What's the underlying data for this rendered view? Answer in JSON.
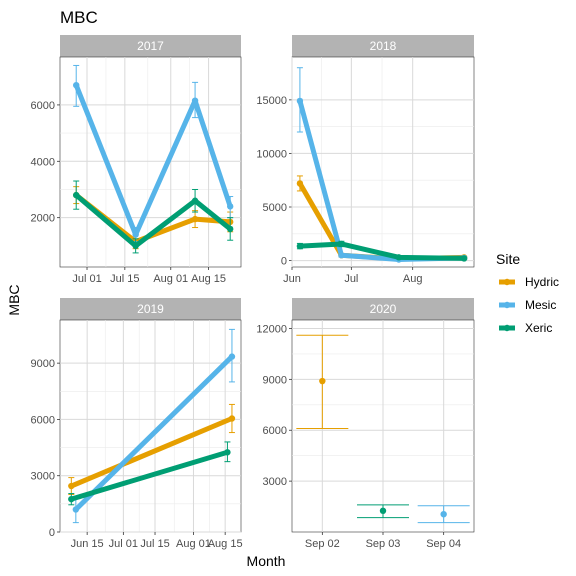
{
  "chart_data": {
    "type": "line",
    "title": "MBC",
    "xlabel": "Month",
    "ylabel": "MBC",
    "legend": {
      "title": "Site",
      "placement": "right",
      "entries": [
        {
          "name": "Hydric",
          "color": "#E69F00"
        },
        {
          "name": "Mesic",
          "color": "#56B4E9"
        },
        {
          "name": "Xeric",
          "color": "#009E73"
        }
      ]
    },
    "grid": true,
    "panels": [
      {
        "strip": "2017",
        "xlim": [
          "2017-06-21",
          "2017-08-27"
        ],
        "ylim": [
          250,
          7700
        ],
        "x_ticks": [
          {
            "date": "2017-07-01",
            "label": "Jul 01"
          },
          {
            "date": "2017-07-15",
            "label": "Jul 15"
          },
          {
            "date": "2017-08-01",
            "label": "Aug 01"
          },
          {
            "date": "2017-08-15",
            "label": "Aug 15"
          }
        ],
        "y_ticks": [
          2000,
          4000,
          6000
        ],
        "series": [
          {
            "name": "Hydric",
            "points": [
              {
                "x": "2017-06-27",
                "y": 2800,
                "lo": 2500,
                "hi": 3100
              },
              {
                "x": "2017-07-19",
                "y": 1150,
                "lo": 900,
                "hi": 1400
              },
              {
                "x": "2017-08-10",
                "y": 1950,
                "lo": 1650,
                "hi": 2250
              },
              {
                "x": "2017-08-23",
                "y": 1850,
                "lo": 1500,
                "hi": 2200
              }
            ]
          },
          {
            "name": "Mesic",
            "points": [
              {
                "x": "2017-06-27",
                "y": 6700,
                "lo": 5950,
                "hi": 7400
              },
              {
                "x": "2017-07-19",
                "y": 1400,
                "lo": 1150,
                "hi": 1650
              },
              {
                "x": "2017-08-10",
                "y": 6150,
                "lo": 5550,
                "hi": 6800
              },
              {
                "x": "2017-08-23",
                "y": 2400,
                "lo": 2000,
                "hi": 2750
              }
            ]
          },
          {
            "name": "Xeric",
            "points": [
              {
                "x": "2017-06-27",
                "y": 2800,
                "lo": 2300,
                "hi": 3300
              },
              {
                "x": "2017-07-19",
                "y": 1000,
                "lo": 750,
                "hi": 1250
              },
              {
                "x": "2017-08-10",
                "y": 2600,
                "lo": 2200,
                "hi": 3000
              },
              {
                "x": "2017-08-23",
                "y": 1600,
                "lo": 1200,
                "hi": 2000
              }
            ]
          }
        ]
      },
      {
        "strip": "2018",
        "xlim": [
          "2018-06-01",
          "2018-09-01"
        ],
        "ylim": [
          -600,
          19000
        ],
        "x_ticks": [
          {
            "date": "2018-06-01",
            "label": "Jun"
          },
          {
            "date": "2018-07-01",
            "label": "Jul"
          },
          {
            "date": "2018-08-01",
            "label": "Aug"
          }
        ],
        "y_ticks": [
          0,
          5000,
          10000,
          15000
        ],
        "series": [
          {
            "name": "Hydric",
            "points": [
              {
                "x": "2018-06-05",
                "y": 7200,
                "lo": 6500,
                "hi": 7900
              },
              {
                "x": "2018-06-26",
                "y": 500,
                "lo": 350,
                "hi": 650
              },
              {
                "x": "2018-07-25",
                "y": 150,
                "lo": 100,
                "hi": 200
              },
              {
                "x": "2018-08-27",
                "y": 300,
                "lo": 200,
                "hi": 400
              }
            ]
          },
          {
            "name": "Mesic",
            "points": [
              {
                "x": "2018-06-05",
                "y": 14900,
                "lo": 12000,
                "hi": 18000
              },
              {
                "x": "2018-06-26",
                "y": 500,
                "lo": 350,
                "hi": 650
              },
              {
                "x": "2018-07-25",
                "y": 100,
                "lo": 50,
                "hi": 150
              },
              {
                "x": "2018-08-27",
                "y": 250,
                "lo": 150,
                "hi": 350
              }
            ]
          },
          {
            "name": "Xeric",
            "points": [
              {
                "x": "2018-06-05",
                "y": 1350,
                "lo": 1100,
                "hi": 1600
              },
              {
                "x": "2018-06-26",
                "y": 1550,
                "lo": 1300,
                "hi": 1800
              },
              {
                "x": "2018-07-25",
                "y": 300,
                "lo": 200,
                "hi": 400
              },
              {
                "x": "2018-08-27",
                "y": 200,
                "lo": 100,
                "hi": 300
              }
            ]
          }
        ]
      },
      {
        "strip": "2019",
        "xlim": [
          "2019-06-03",
          "2019-08-22"
        ],
        "ylim": [
          0,
          11300
        ],
        "x_ticks": [
          {
            "date": "2019-06-15",
            "label": "Jun 15"
          },
          {
            "date": "2019-07-01",
            "label": "Jul 01"
          },
          {
            "date": "2019-07-15",
            "label": "Jul 15"
          },
          {
            "date": "2019-08-01",
            "label": "Aug 01"
          },
          {
            "date": "2019-08-15",
            "label": "Aug 15"
          }
        ],
        "y_ticks": [
          0,
          3000,
          6000,
          9000
        ],
        "series": [
          {
            "name": "Hydric",
            "points": [
              {
                "x": "2019-06-08",
                "y": 2450,
                "lo": 2000,
                "hi": 2900
              },
              {
                "x": "2019-08-18",
                "y": 6050,
                "lo": 5300,
                "hi": 6800
              }
            ]
          },
          {
            "name": "Mesic",
            "points": [
              {
                "x": "2019-06-10",
                "y": 1200,
                "lo": 500,
                "hi": 1900
              },
              {
                "x": "2019-08-18",
                "y": 9350,
                "lo": 8000,
                "hi": 10800
              }
            ]
          },
          {
            "name": "Xeric",
            "points": [
              {
                "x": "2019-06-08",
                "y": 1750,
                "lo": 1450,
                "hi": 2050
              },
              {
                "x": "2019-08-16",
                "y": 4250,
                "lo": 3750,
                "hi": 4800
              }
            ]
          }
        ]
      },
      {
        "strip": "2020",
        "x_categorical": true,
        "categories": [
          "Sep 02",
          "Sep 03",
          "Sep 04"
        ],
        "ylim": [
          0,
          12500
        ],
        "y_ticks": [
          3000,
          6000,
          9000,
          12000
        ],
        "series": [
          {
            "name": "Hydric",
            "points": [
              {
                "x": "Sep 02",
                "y": 8900,
                "lo": 6100,
                "hi": 11600
              }
            ]
          },
          {
            "name": "Xeric",
            "points": [
              {
                "x": "Sep 03",
                "y": 1250,
                "lo": 850,
                "hi": 1600
              }
            ]
          },
          {
            "name": "Mesic",
            "points": [
              {
                "x": "Sep 04",
                "y": 1050,
                "lo": 550,
                "hi": 1550
              }
            ]
          }
        ]
      }
    ]
  }
}
